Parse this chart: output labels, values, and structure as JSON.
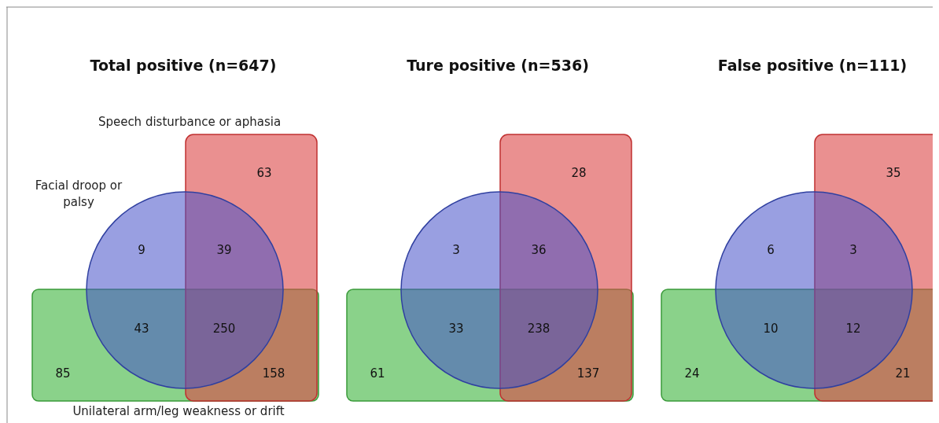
{
  "chart_data": [
    {
      "type": "other",
      "title": "Total positive (n=647)",
      "categories": [
        null,
        null,
        null,
        null,
        null,
        null,
        null
      ],
      "values": [
        63,
        9,
        39,
        43,
        250,
        85,
        158
      ],
      "data_labels": true,
      "annotations": [
        "Speech disturbance or aphasia",
        "Facial droop or palsy",
        "Unilateral arm/leg weakness or drift"
      ]
    },
    {
      "type": "other",
      "title": "Ture positive (n=536)",
      "categories": [
        null,
        null,
        null,
        null,
        null,
        null,
        null
      ],
      "values": [
        28,
        3,
        36,
        33,
        238,
        61,
        137
      ],
      "data_labels": true
    },
    {
      "type": "other",
      "title": "False positive (n=111)",
      "categories": [
        null,
        null,
        null,
        null,
        null,
        null,
        null
      ],
      "values": [
        35,
        6,
        3,
        10,
        12,
        24,
        21
      ],
      "data_labels": true
    }
  ]
}
